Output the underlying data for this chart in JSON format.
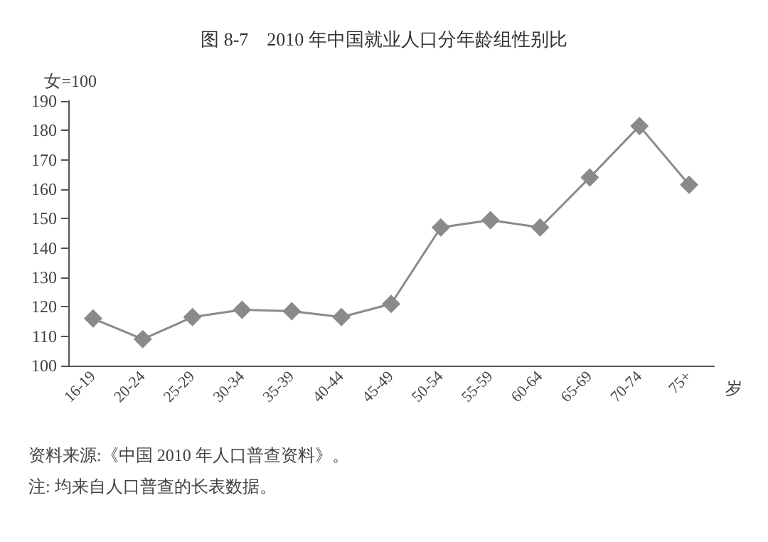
{
  "chart_data": {
    "type": "line",
    "title": "图 8-7　2010 年中国就业人口分年龄组性别比",
    "ylabel": "女=100",
    "xlabel": "岁",
    "categories": [
      "16-19",
      "20-24",
      "25-29",
      "30-34",
      "35-39",
      "40-44",
      "45-49",
      "50-54",
      "55-59",
      "60-64",
      "65-69",
      "70-74",
      "75+"
    ],
    "series": [
      {
        "color": "#8a8a8a",
        "values": [
          116,
          109,
          116.5,
          119,
          118.5,
          116.5,
          121,
          147,
          149.5,
          147,
          164,
          181.5,
          161.5
        ]
      }
    ],
    "ylim": [
      100,
      190
    ],
    "yticks": [
      100,
      110,
      120,
      130,
      140,
      150,
      160,
      170,
      180,
      190
    ],
    "grid": false,
    "marker": "diamond",
    "line_style": "solid",
    "annotations": [
      "资料来源:《中国 2010 年人口普查资料》。",
      "注: 均来自人口普查的长表数据。"
    ]
  }
}
